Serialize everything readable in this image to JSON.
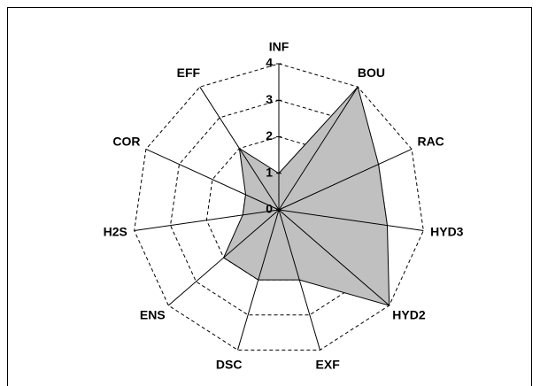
{
  "chart_data": {
    "type": "radar",
    "categories": [
      "INF",
      "BOU",
      "RAC",
      "HYD3",
      "HYD2",
      "EXF",
      "DSC",
      "ENS",
      "H2S",
      "COR",
      "EFF"
    ],
    "values": [
      1,
      4,
      3,
      3,
      4,
      2,
      2,
      2,
      1,
      1,
      2
    ],
    "color": "#c0c0c0",
    "rlim": [
      0,
      4
    ],
    "rticks": [
      0,
      1,
      2,
      3,
      4
    ],
    "grid": true
  }
}
